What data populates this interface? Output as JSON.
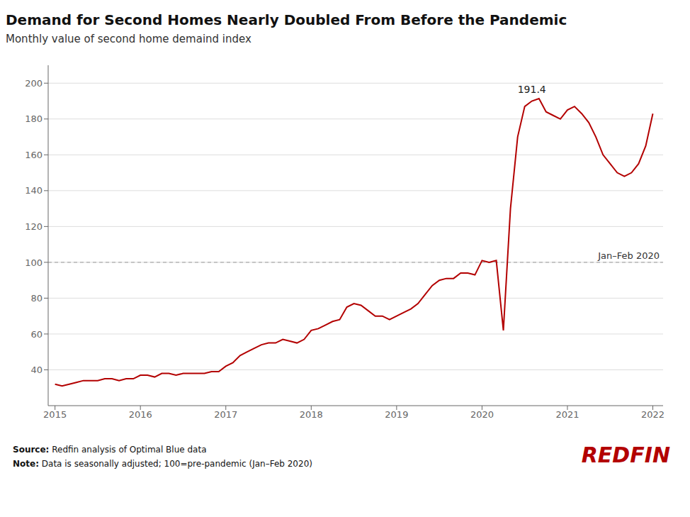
{
  "chart_data": {
    "type": "line",
    "title": "Demand for Second Homes Nearly Doubled From Before the Pandemic",
    "subtitle": "Monthly value of second home demaind index",
    "x": [
      2015.0,
      2015.083,
      2015.167,
      2015.25,
      2015.333,
      2015.417,
      2015.5,
      2015.583,
      2015.667,
      2015.75,
      2015.833,
      2015.917,
      2016.0,
      2016.083,
      2016.167,
      2016.25,
      2016.333,
      2016.417,
      2016.5,
      2016.583,
      2016.667,
      2016.75,
      2016.833,
      2016.917,
      2017.0,
      2017.083,
      2017.167,
      2017.25,
      2017.333,
      2017.417,
      2017.5,
      2017.583,
      2017.667,
      2017.75,
      2017.833,
      2017.917,
      2018.0,
      2018.083,
      2018.167,
      2018.25,
      2018.333,
      2018.417,
      2018.5,
      2018.583,
      2018.667,
      2018.75,
      2018.833,
      2018.917,
      2019.0,
      2019.083,
      2019.167,
      2019.25,
      2019.333,
      2019.417,
      2019.5,
      2019.583,
      2019.667,
      2019.75,
      2019.833,
      2019.917,
      2020.0,
      2020.083,
      2020.167,
      2020.25,
      2020.333,
      2020.417,
      2020.5,
      2020.583,
      2020.667,
      2020.75,
      2020.833,
      2020.917,
      2021.0,
      2021.083,
      2021.167,
      2021.25,
      2021.333,
      2021.417,
      2021.5,
      2021.583,
      2021.667,
      2021.75,
      2021.833,
      2021.917,
      2022.0
    ],
    "values": [
      32,
      31,
      32,
      33,
      34,
      34,
      34,
      35,
      35,
      34,
      35,
      35,
      37,
      37,
      36,
      38,
      38,
      37,
      38,
      38,
      38,
      38,
      39,
      39,
      42,
      44,
      48,
      50,
      52,
      54,
      55,
      55,
      57,
      56,
      55,
      57,
      62,
      63,
      65,
      67,
      68,
      75,
      77,
      76,
      73,
      70,
      70,
      68,
      70,
      72,
      74,
      77,
      82,
      87,
      90,
      91,
      91,
      94,
      94,
      93,
      101,
      100,
      101,
      62,
      130,
      170,
      187,
      190,
      191.4,
      184,
      182,
      180,
      185,
      187,
      183,
      178,
      170,
      160,
      155,
      150,
      148,
      150,
      155,
      165,
      183
    ],
    "color": "#b30000",
    "xlim": [
      2014.92,
      2022.12
    ],
    "xticks": [
      2015,
      2016,
      2017,
      2018,
      2019,
      2020,
      2021,
      2022
    ],
    "ylim": [
      20,
      210
    ],
    "yticks": [
      40,
      60,
      80,
      100,
      120,
      140,
      160,
      180,
      200
    ],
    "grid": true,
    "reference_line": {
      "y": 100,
      "label": "Jan–Feb 2020"
    },
    "annotations": [
      {
        "text": "191.4",
        "x": 2020.583,
        "y": 191.4
      }
    ],
    "footer": [
      {
        "bold": "Source:",
        "text": "Redfin analysis of Optimal Blue data"
      },
      {
        "bold": "Note:",
        "text": "Data is seasonally adjusted; 100=pre-pandemic (Jan–Feb 2020)"
      }
    ],
    "logo": "REDFIN"
  }
}
